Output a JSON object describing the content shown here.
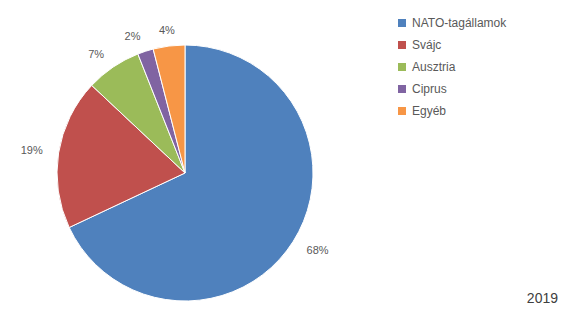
{
  "chart_data": {
    "type": "pie",
    "categories": [
      "NATO-tagállamok",
      "Svájc",
      "Ausztria",
      "Ciprus",
      "Egyéb"
    ],
    "values": [
      68,
      19,
      7,
      2,
      4
    ],
    "value_labels": [
      "68%",
      "19%",
      "7%",
      "2%",
      "4%"
    ],
    "colors": [
      "#4f81bd",
      "#c0504d",
      "#9bbb59",
      "#8064a2",
      "#f79646"
    ],
    "data_labels": true,
    "legend": "right",
    "annotation": "2019"
  }
}
